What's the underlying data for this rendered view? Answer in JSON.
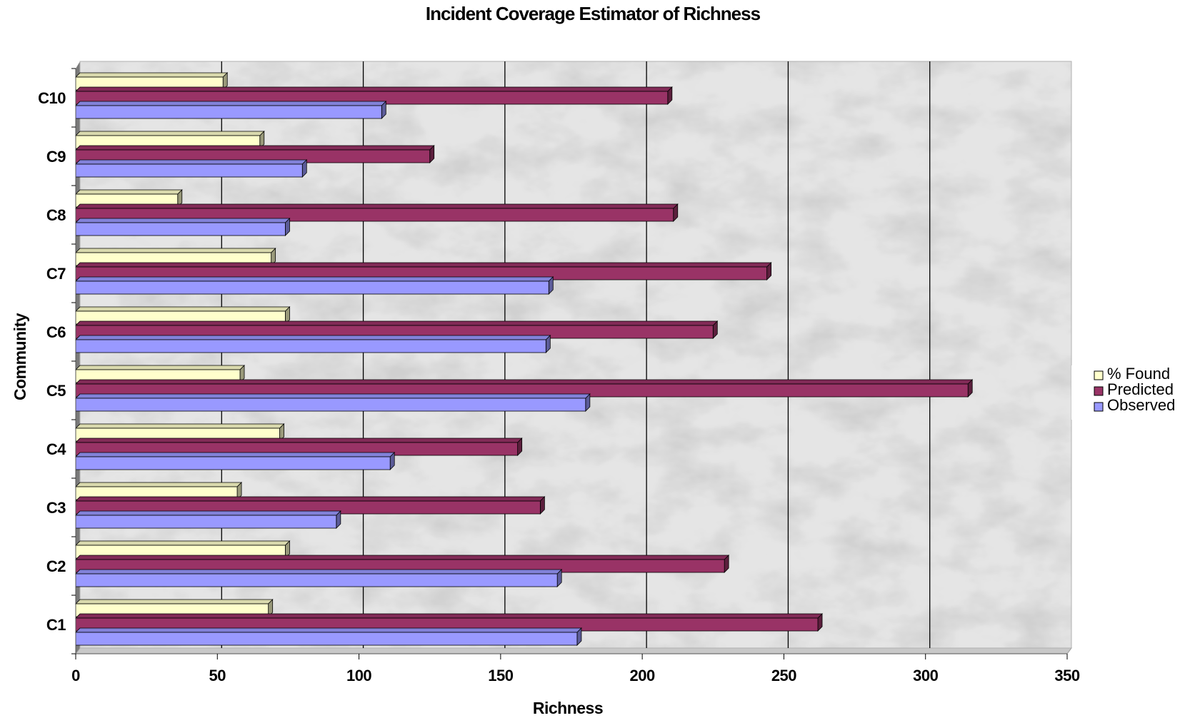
{
  "chart_data": {
    "type": "bar",
    "orientation": "horizontal",
    "title": "Incident Coverage Estimator of Richness",
    "xlabel": "Richness",
    "ylabel": "Community",
    "xlim": [
      0,
      350
    ],
    "xticks": [
      "0",
      "50",
      "100",
      "150",
      "200",
      "250",
      "300",
      "350"
    ],
    "categories": [
      "C1",
      "C2",
      "C3",
      "C4",
      "C5",
      "C6",
      "C7",
      "C8",
      "C9",
      "C10"
    ],
    "series": [
      {
        "name": "% Found",
        "color": "#ffffcc",
        "values": [
          68,
          74,
          57,
          72,
          58,
          74,
          69,
          36,
          65,
          52
        ]
      },
      {
        "name": "Predicted",
        "color": "#993366",
        "values": [
          262,
          229,
          164,
          156,
          315,
          225,
          244,
          211,
          125,
          209
        ]
      },
      {
        "name": "Observed",
        "color": "#9999ff",
        "values": [
          177,
          170,
          92,
          111,
          180,
          166,
          167,
          74,
          80,
          108
        ]
      }
    ],
    "legend_entries": [
      "% Found",
      "Predicted",
      "Observed"
    ],
    "legend_position": "right",
    "grid": true,
    "background": "marble texture"
  }
}
